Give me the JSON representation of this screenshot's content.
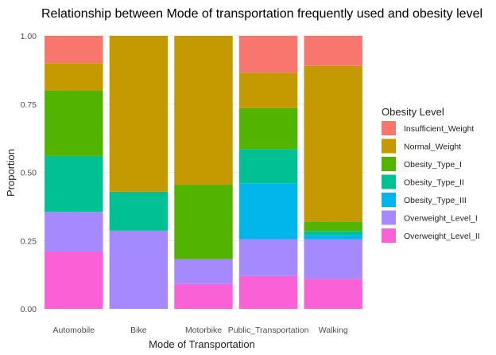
{
  "chart_data": {
    "type": "bar",
    "stacked": true,
    "title": "Relationship between Mode of transportation frequently used and obesity level",
    "xlabel": "Mode of Transportation",
    "ylabel": "Proportion",
    "ylim": [
      0,
      1
    ],
    "yticks": [
      "0.00",
      "0.25",
      "0.50",
      "0.75",
      "1.00"
    ],
    "grid": true,
    "legend": {
      "title": "Obesity Level",
      "position": "right"
    },
    "categories": [
      "Automobile",
      "Bike",
      "Motorbike",
      "Public_Transportation",
      "Walking"
    ],
    "series": [
      {
        "name": "Insufficient_Weight",
        "color": "#F8766D",
        "values": [
          0.1,
          0.0,
          0.0,
          0.135,
          0.11
        ]
      },
      {
        "name": "Normal_Weight",
        "color": "#C49A00",
        "values": [
          0.1,
          0.571,
          0.545,
          0.13,
          0.57
        ]
      },
      {
        "name": "Obesity_Type_I",
        "color": "#53B400",
        "values": [
          0.24,
          0.0,
          0.273,
          0.15,
          0.035
        ]
      },
      {
        "name": "Obesity_Type_II",
        "color": "#00C094",
        "values": [
          0.205,
          0.143,
          0.0,
          0.125,
          0.015
        ]
      },
      {
        "name": "Obesity_Type_III",
        "color": "#00B6EB",
        "values": [
          0.0,
          0.0,
          0.0,
          0.205,
          0.015
        ]
      },
      {
        "name": "Overweight_Level_I",
        "color": "#A58AFF",
        "values": [
          0.145,
          0.286,
          0.091,
          0.135,
          0.145
        ]
      },
      {
        "name": "Overweight_Level_II",
        "color": "#FB61D7",
        "values": [
          0.21,
          0.0,
          0.091,
          0.12,
          0.11
        ]
      }
    ]
  }
}
